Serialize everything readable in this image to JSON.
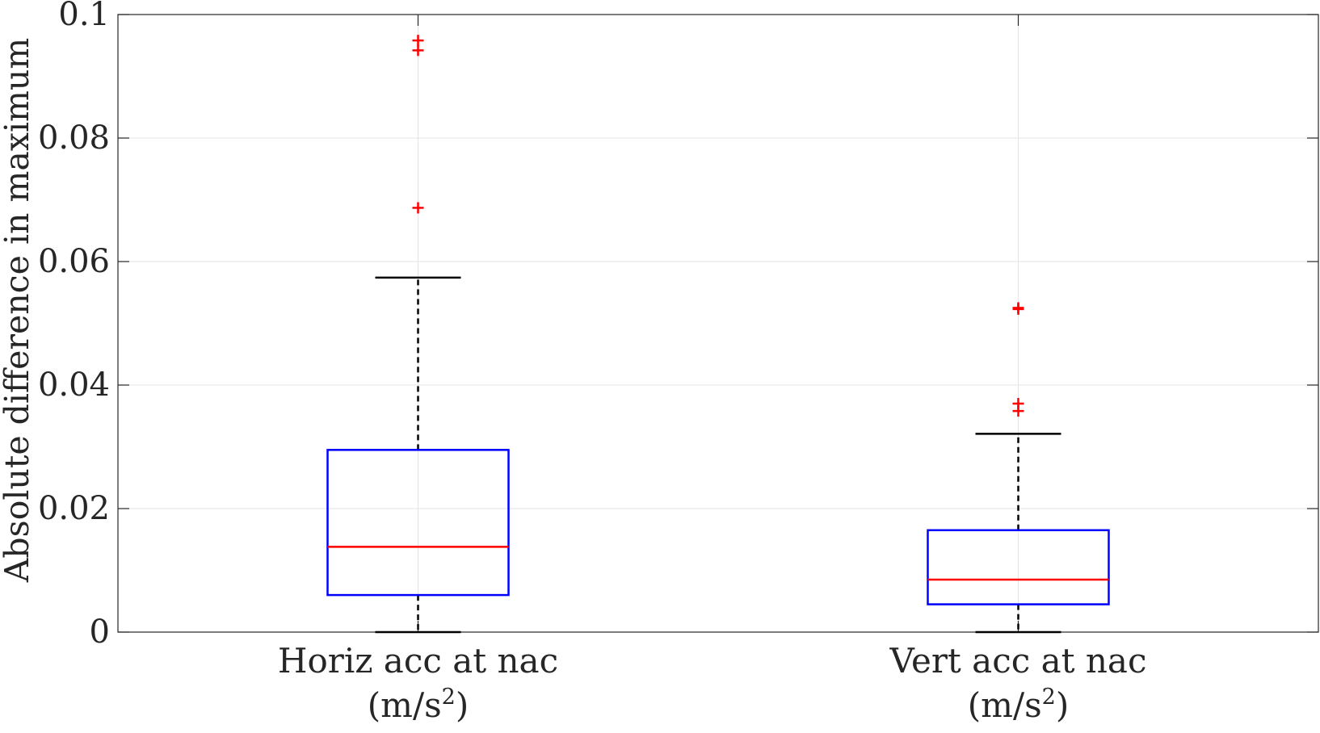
{
  "chart_data": {
    "type": "boxplot",
    "title": "",
    "xlabel": "",
    "ylabel": "Absolute difference in maximum",
    "ylim": [
      0,
      0.1
    ],
    "yticks": [
      0,
      0.02,
      0.04,
      0.06,
      0.08,
      0.1
    ],
    "ytick_labels": [
      "0",
      "0.02",
      "0.04",
      "0.06",
      "0.08",
      "0.1"
    ],
    "grid": true,
    "categories": [
      {
        "line1": "Horiz acc at nac",
        "line2_pre": "(m/s",
        "line2_sup": "2",
        "line2_post": ")"
      },
      {
        "line1": "Vert acc at nac",
        "line2_pre": "(m/s",
        "line2_sup": "2",
        "line2_post": ")"
      }
    ],
    "boxes": [
      {
        "min": 0.0,
        "q1": 0.006,
        "median": 0.0138,
        "q3": 0.0295,
        "max": 0.0574,
        "outliers": [
          0.0958,
          0.0942,
          0.0687
        ]
      },
      {
        "min": 0.0,
        "q1": 0.0045,
        "median": 0.0085,
        "q3": 0.0165,
        "max": 0.0321,
        "outliers": [
          0.0525,
          0.0523,
          0.037,
          0.0358
        ]
      }
    ],
    "colors": {
      "box": "#0000ff",
      "median": "#ff0000",
      "whisker": "#000000",
      "outlier": "#ff0000",
      "grid": "#e3e3e3",
      "axis": "#262626"
    }
  }
}
